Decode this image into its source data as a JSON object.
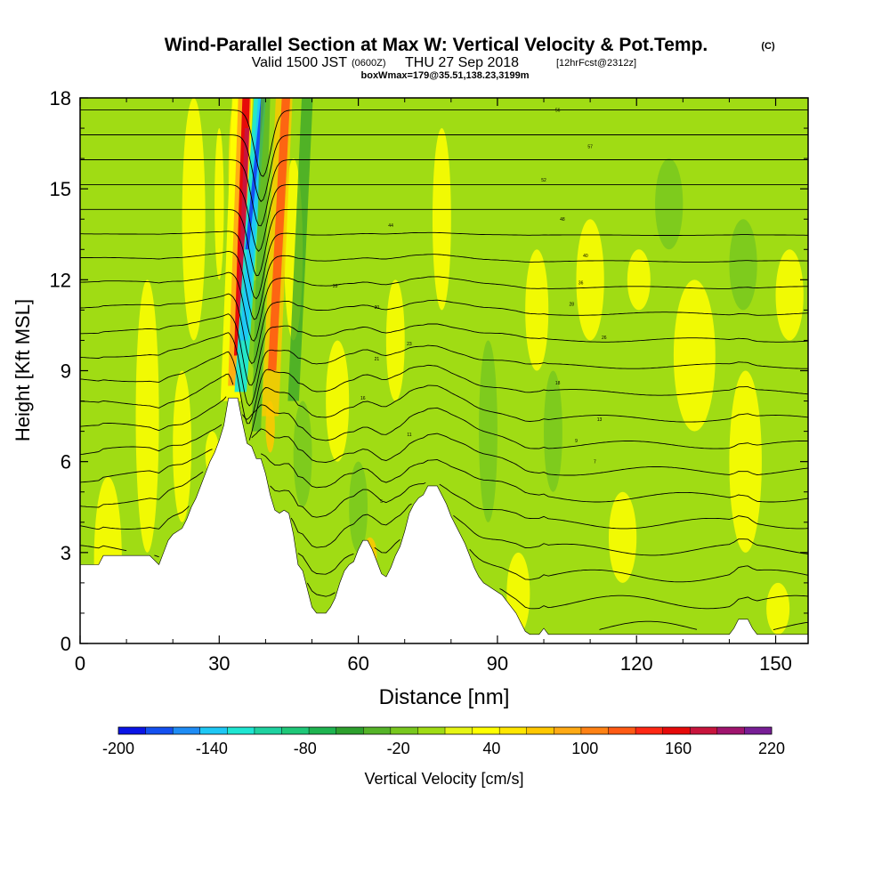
{
  "header": {
    "title": "Wind-Parallel Section at Max W: Vertical Velocity & Pot.Temp.",
    "copyright": "(C)",
    "valid_prefix": "Valid 1500 JST",
    "valid_utc": "(0600Z)",
    "valid_date": "THU 27 Sep 2018",
    "forecast": "[12hrFcst@2312z]",
    "box_info": "boxWmax=179@35.51,138.23,3199m"
  },
  "chart_data": {
    "type": "heatmap",
    "xlabel": "Distance [nm]",
    "ylabel": "Height [Kft MSL]",
    "xlim": [
      0,
      157
    ],
    "ylim": [
      0,
      18
    ],
    "x_ticks": [
      0,
      30,
      60,
      90,
      120,
      150
    ],
    "y_ticks": [
      0,
      3,
      6,
      9,
      12,
      15,
      18
    ],
    "x_tick_labels": [
      "0",
      "30",
      "60",
      "90",
      "120",
      "150"
    ],
    "y_tick_labels": [
      "0",
      "3",
      "6",
      "9",
      "12",
      "15",
      "18"
    ],
    "colorbar": {
      "label": "Vertical Velocity [cm/s]",
      "min": -200,
      "max": 220,
      "step": 20,
      "tick_labels": [
        "-200",
        "-140",
        "-80",
        "-20",
        "40",
        "100",
        "160",
        "220"
      ],
      "colors": [
        "#0a14e6",
        "#1450f0",
        "#1e8cf5",
        "#1ec8f5",
        "#1ee6d2",
        "#1ed2a0",
        "#1ec878",
        "#1eb450",
        "#2da02d",
        "#55b428",
        "#78c81e",
        "#a0dc14",
        "#e6f514",
        "#ffff00",
        "#ffe600",
        "#ffc800",
        "#ffaa14",
        "#ff8214",
        "#ff5a14",
        "#ff2814",
        "#e60a0a",
        "#c8143c",
        "#a0146e",
        "#781e96"
      ]
    },
    "terrain_kft": [
      [
        0,
        2.6
      ],
      [
        4,
        2.6
      ],
      [
        5,
        2.9
      ],
      [
        12,
        2.9
      ],
      [
        15,
        2.9
      ],
      [
        17,
        2.6
      ],
      [
        18,
        3.0
      ],
      [
        19,
        3.4
      ],
      [
        20,
        3.6
      ],
      [
        22,
        3.8
      ],
      [
        23,
        4.1
      ],
      [
        24,
        4.5
      ],
      [
        25,
        4.8
      ],
      [
        26,
        5.2
      ],
      [
        27,
        5.6
      ],
      [
        28,
        6.0
      ],
      [
        29,
        6.3
      ],
      [
        30,
        6.7
      ],
      [
        31,
        7.2
      ],
      [
        32,
        8.1
      ],
      [
        34,
        8.1
      ],
      [
        35,
        7.3
      ],
      [
        36,
        6.6
      ],
      [
        37,
        6.5
      ],
      [
        38,
        6.1
      ],
      [
        39,
        6.1
      ],
      [
        40,
        5.6
      ],
      [
        41,
        4.9
      ],
      [
        42,
        4.4
      ],
      [
        43,
        4.3
      ],
      [
        44,
        4.4
      ],
      [
        45,
        4.3
      ],
      [
        46,
        3.6
      ],
      [
        47,
        2.6
      ],
      [
        48,
        2.4
      ],
      [
        49,
        1.8
      ],
      [
        50,
        1.2
      ],
      [
        51,
        1.0
      ],
      [
        53,
        1.0
      ],
      [
        54,
        1.2
      ],
      [
        55,
        1.5
      ],
      [
        56,
        2.0
      ],
      [
        57,
        2.4
      ],
      [
        58,
        2.6
      ],
      [
        59,
        2.7
      ],
      [
        60,
        3.1
      ],
      [
        61,
        3.4
      ],
      [
        62,
        3.4
      ],
      [
        63,
        3.1
      ],
      [
        64,
        2.7
      ],
      [
        65,
        2.3
      ],
      [
        66,
        2.2
      ],
      [
        67,
        2.5
      ],
      [
        68,
        2.9
      ],
      [
        69,
        3.2
      ],
      [
        70,
        3.7
      ],
      [
        71,
        4.3
      ],
      [
        72,
        4.6
      ],
      [
        73,
        4.8
      ],
      [
        74,
        4.9
      ],
      [
        75,
        5.2
      ],
      [
        77,
        5.2
      ],
      [
        78,
        4.9
      ],
      [
        79,
        4.6
      ],
      [
        80,
        4.2
      ],
      [
        81,
        3.9
      ],
      [
        82,
        3.6
      ],
      [
        83,
        3.3
      ],
      [
        84,
        2.9
      ],
      [
        85,
        2.5
      ],
      [
        86,
        2.2
      ],
      [
        87,
        2.0
      ],
      [
        88,
        1.9
      ],
      [
        89,
        1.8
      ],
      [
        90,
        1.7
      ],
      [
        91,
        1.6
      ],
      [
        92,
        1.4
      ],
      [
        93,
        1.2
      ],
      [
        94,
        1.0
      ],
      [
        95,
        0.7
      ],
      [
        96,
        0.4
      ],
      [
        97,
        0.3
      ],
      [
        99,
        0.3
      ],
      [
        100,
        0.5
      ],
      [
        101,
        0.3
      ],
      [
        140,
        0.3
      ],
      [
        141,
        0.5
      ],
      [
        142,
        0.8
      ],
      [
        144,
        0.8
      ],
      [
        145,
        0.5
      ],
      [
        146,
        0.3
      ],
      [
        157,
        0.3
      ]
    ],
    "contour_labels": [
      "56",
      "57",
      "52",
      "48",
      "44",
      "40",
      "36",
      "33",
      "30",
      "28",
      "26",
      "23",
      "21",
      "18",
      "16",
      "13",
      "11",
      "9",
      "7",
      "5"
    ]
  }
}
